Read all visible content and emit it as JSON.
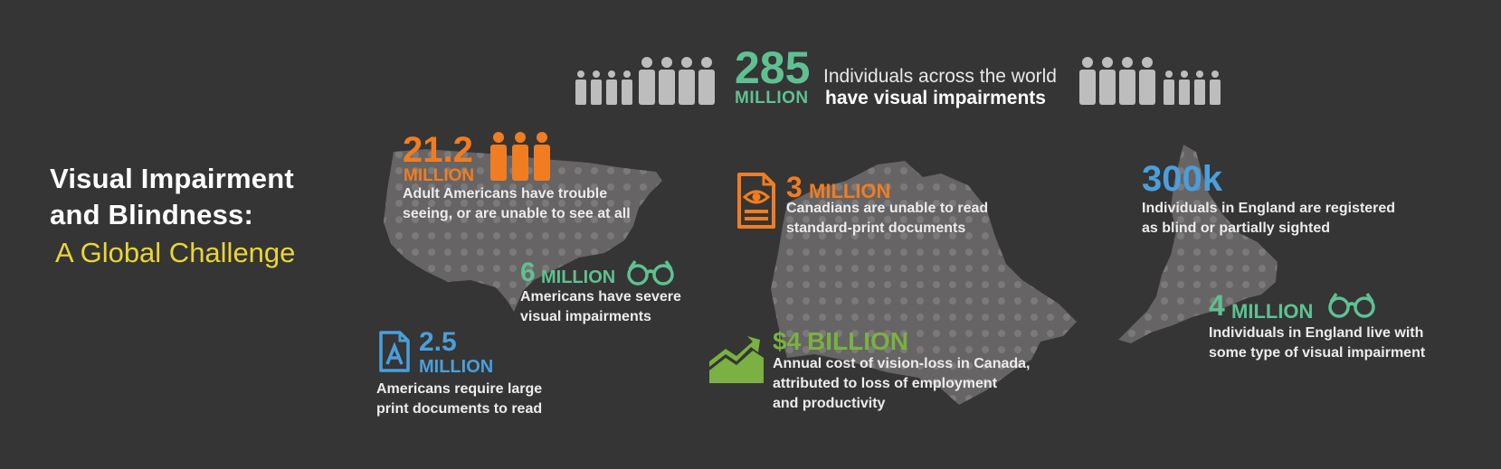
{
  "title": {
    "line1": "Visual Impairment",
    "line2": "and Blindness:",
    "line3": "A Global Challenge"
  },
  "hero": {
    "number": "285",
    "unit": "MILLION",
    "line1": "Individuals across the world",
    "line2": "have visual impairments"
  },
  "stats": [
    {
      "number": "21.2",
      "unit": "MILLION",
      "desc1": "Adult Americans have trouble",
      "desc2": "seeing, or are unable to see at all"
    },
    {
      "number": "6",
      "unit": "MILLION",
      "desc1": "Americans have severe",
      "desc2": "visual impairments"
    },
    {
      "number": "2.5",
      "unit": "MILLION",
      "desc1": "Americans require large",
      "desc2": "print documents to read"
    },
    {
      "number": "3",
      "unit": "MILLION",
      "desc1": "Canadians are unable to read",
      "desc2": "standard-print documents"
    },
    {
      "number": "$4",
      "unit": "BILLION",
      "desc1": "Annual cost of vision-loss in Canada,",
      "desc2": "attributed to loss of employment",
      "desc3": "and productivity"
    },
    {
      "number": "300k",
      "desc1": "Individuals in England are registered",
      "desc2": "as blind or partially sighted"
    },
    {
      "number": "4",
      "unit": "MILLION",
      "desc1": "Individuals in England live with",
      "desc2": "some type of visual impairment"
    }
  ],
  "icons": {
    "people": "person-icon",
    "glasses": "glasses-icon",
    "document": "document-eye-icon",
    "large_print": "large-print-icon",
    "chart": "trend-chart-icon"
  },
  "colors": {
    "background": "#353535",
    "map": "#6a6868",
    "orange": "#f07d22",
    "green": "#5fc191",
    "blue": "#4a9fdc",
    "lime": "#7ab142",
    "yellow": "#e9d632"
  }
}
